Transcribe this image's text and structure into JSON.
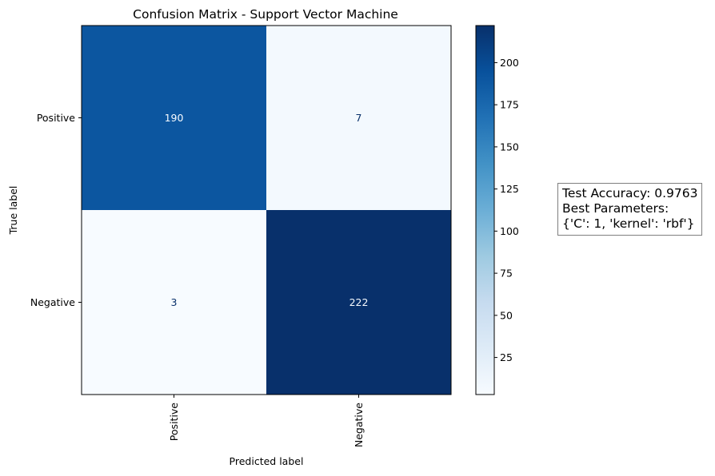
{
  "chart_data": {
    "type": "heatmap",
    "title": "Confusion Matrix - Support Vector Machine",
    "xlabel": "Predicted label",
    "ylabel": "True label",
    "x_categories": [
      "Positive",
      "Negative"
    ],
    "y_categories": [
      "Positive",
      "Negative"
    ],
    "values": [
      [
        190,
        7
      ],
      [
        3,
        222
      ]
    ],
    "colormap": "Blues",
    "colorbar": {
      "min": 3,
      "max": 222,
      "ticks": [
        25,
        50,
        75,
        100,
        125,
        150,
        175,
        200
      ],
      "tick_labels": [
        "25",
        "50",
        "75",
        "100",
        "125",
        "150",
        "175",
        "200"
      ]
    }
  },
  "annotation": {
    "line1": "Test Accuracy: 0.9763",
    "line2": "Best Parameters:",
    "line3": "{'C': 1, 'kernel': 'rbf'}"
  }
}
